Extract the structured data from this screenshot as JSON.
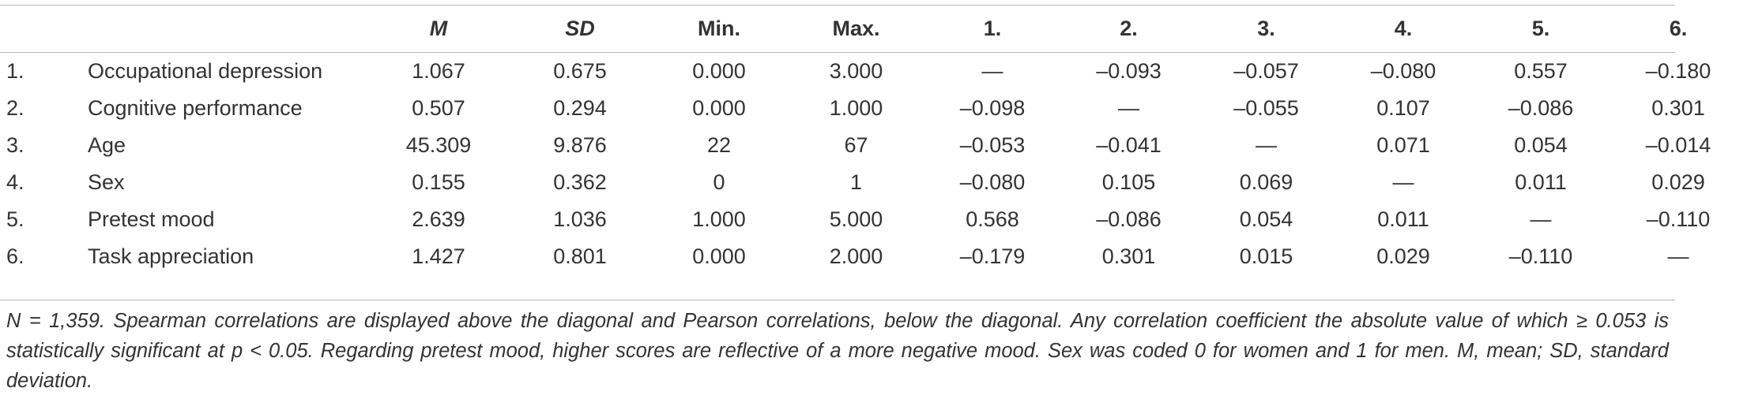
{
  "table": {
    "columns": [
      "",
      "",
      "M",
      "SD",
      "Min.",
      "Max.",
      "1.",
      "2.",
      "3.",
      "4.",
      "5.",
      "6."
    ],
    "rows": [
      [
        "1.",
        "Occupational depression",
        "1.067",
        "0.675",
        "0.000",
        "3.000",
        "—",
        "–0.093",
        "–0.057",
        "–0.080",
        "0.557",
        "–0.180"
      ],
      [
        "2.",
        "Cognitive performance",
        "0.507",
        "0.294",
        "0.000",
        "1.000",
        "–0.098",
        "—",
        "–0.055",
        "0.107",
        "–0.086",
        "0.301"
      ],
      [
        "3.",
        "Age",
        "45.309",
        "9.876",
        "22",
        "67",
        "–0.053",
        "–0.041",
        "—",
        "0.071",
        "0.054",
        "–0.014"
      ],
      [
        "4.",
        "Sex",
        "0.155",
        "0.362",
        "0",
        "1",
        "–0.080",
        "0.105",
        "0.069",
        "—",
        "0.011",
        "0.029"
      ],
      [
        "5.",
        "Pretest mood",
        "2.639",
        "1.036",
        "1.000",
        "5.000",
        "0.568",
        "–0.086",
        "0.054",
        "0.011",
        "—",
        "–0.110"
      ],
      [
        "6.",
        "Task appreciation",
        "1.427",
        "0.801",
        "0.000",
        "2.000",
        "–0.179",
        "0.301",
        "0.015",
        "0.029",
        "–0.110",
        "—"
      ]
    ]
  },
  "note": "N = 1,359. Spearman correlations are displayed above the diagonal and Pearson correlations, below the diagonal. Any correlation coefficient the absolute value of which ≥ 0.053 is statistically significant at p < 0.05. Regarding pretest mood, higher scores are reflective of a more negative mood. Sex was coded 0 for women and 1 for men. M, mean; SD, standard deviation."
}
